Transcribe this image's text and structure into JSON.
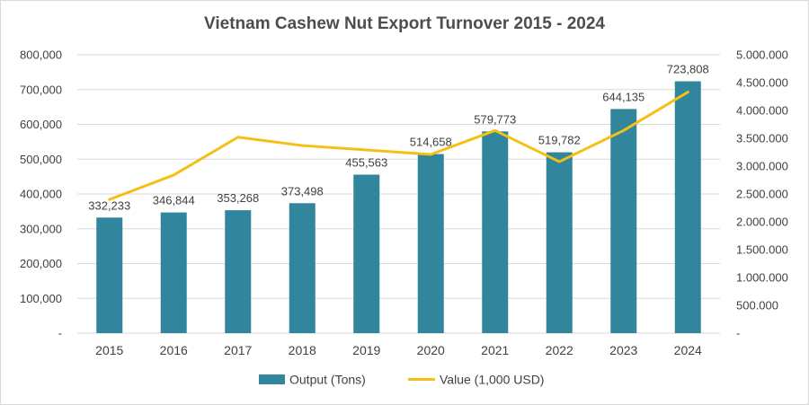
{
  "chart_data": {
    "type": "bar",
    "title": "Vietnam Cashew Nut Export Turnover 2015 - 2024",
    "categories": [
      "2015",
      "2016",
      "2017",
      "2018",
      "2019",
      "2020",
      "2021",
      "2022",
      "2023",
      "2024"
    ],
    "series": [
      {
        "name": "Output (Tons)",
        "type": "bar",
        "axis": "left",
        "color": "#31859c",
        "values": [
          332233,
          346844,
          353268,
          373498,
          455563,
          514658,
          579773,
          519782,
          644135,
          723808
        ],
        "labels": [
          "332,233",
          "346,844",
          "353,268",
          "373,498",
          "455,563",
          "514,658",
          "579,773",
          "519,782",
          "644,135",
          "723,808"
        ]
      },
      {
        "name": "Value (1,000 USD)",
        "type": "line",
        "axis": "right",
        "color": "#f5c016",
        "values": [
          2400000,
          2840000,
          3520000,
          3370000,
          3290000,
          3210000,
          3640000,
          3080000,
          3640000,
          4330000
        ]
      }
    ],
    "y_left": {
      "ylim": [
        0,
        800000
      ],
      "ticks": [
        "-",
        "100,000",
        "200,000",
        "300,000",
        "400,000",
        "500,000",
        "600,000",
        "700,000",
        "800,000"
      ]
    },
    "y_right": {
      "ylim": [
        0,
        5000000
      ],
      "ticks": [
        "-",
        "500.000",
        "1.000.000",
        "1.500.000",
        "2.000.000",
        "2.500.000",
        "3.000.000",
        "3.500.000",
        "4.000.000",
        "4.500.000",
        "5.000.000"
      ]
    },
    "grid": true,
    "legend_position": "bottom"
  }
}
